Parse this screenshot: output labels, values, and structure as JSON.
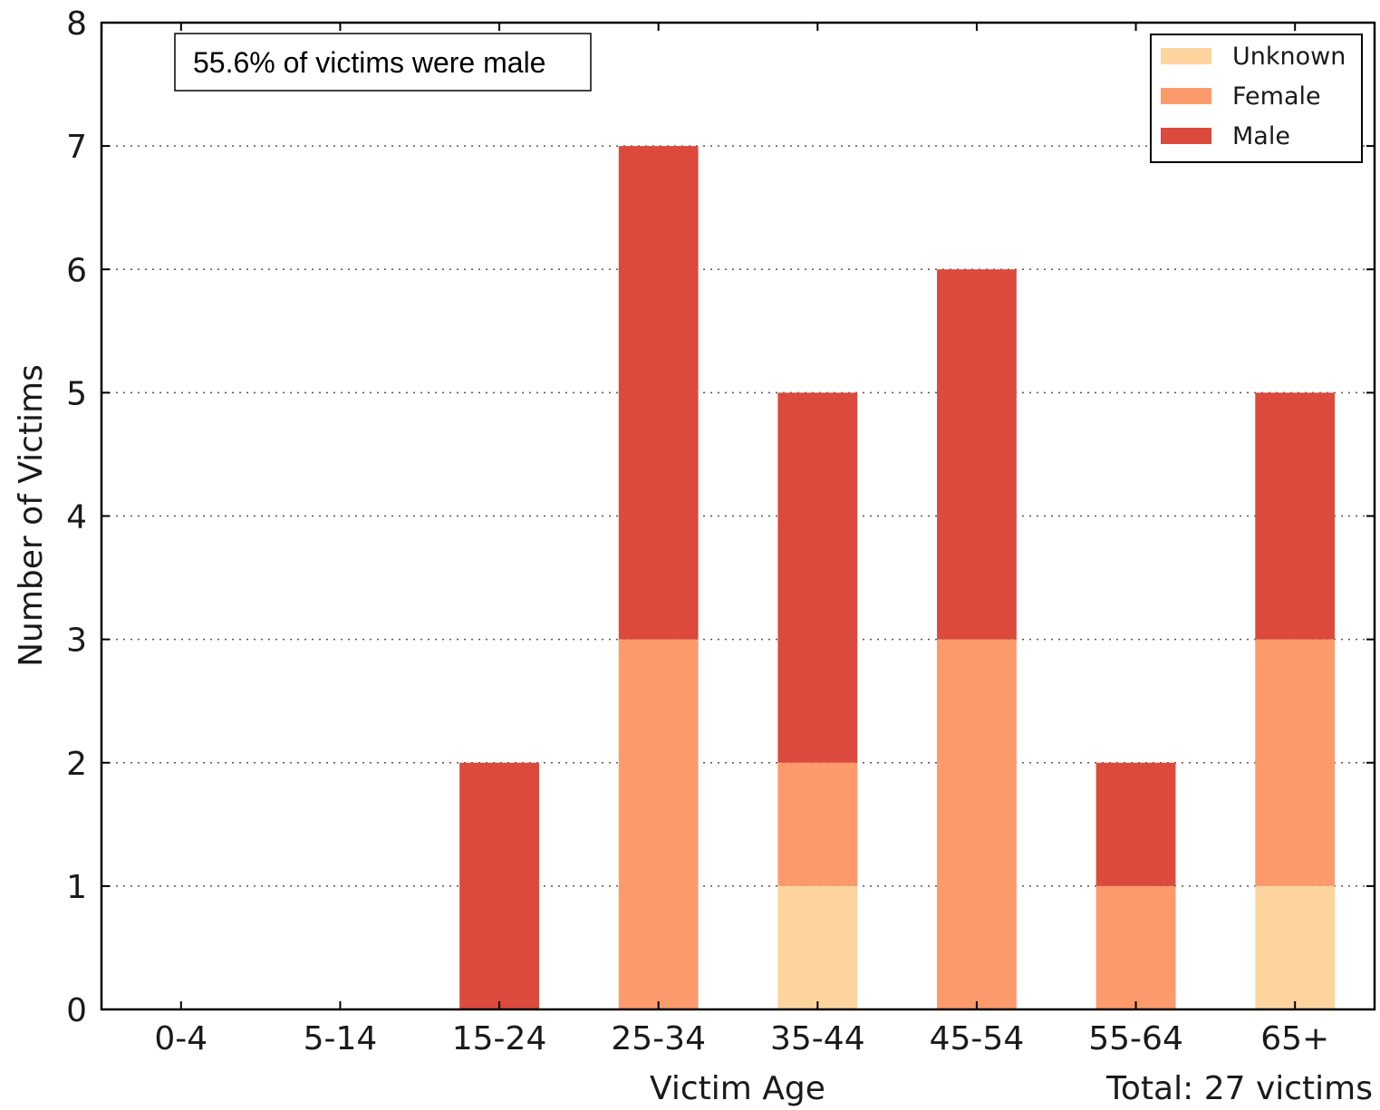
{
  "chart_data": {
    "type": "bar",
    "stacked": true,
    "categories": [
      "0-4",
      "5-14",
      "15-24",
      "25-34",
      "35-44",
      "45-54",
      "55-64",
      "65+"
    ],
    "series": [
      {
        "name": "Unknown",
        "color": "#fdd49e",
        "values": [
          0,
          0,
          0,
          0,
          1,
          0,
          0,
          1
        ]
      },
      {
        "name": "Female",
        "color": "#fc9a6c",
        "values": [
          0,
          0,
          0,
          3,
          1,
          3,
          1,
          2
        ]
      },
      {
        "name": "Male",
        "color": "#db4a3c",
        "values": [
          0,
          0,
          2,
          4,
          3,
          3,
          1,
          2
        ]
      }
    ],
    "xlabel": "Victim Age",
    "ylabel": "Number of Victims",
    "ylim": [
      0,
      8
    ],
    "yticks": [
      0,
      1,
      2,
      3,
      4,
      5,
      6,
      7,
      8
    ],
    "grid": "horizontal dotted",
    "legend_position": "top-right",
    "annotation": "55.6% of victims were male",
    "footnote": "Total: 27 victims"
  }
}
